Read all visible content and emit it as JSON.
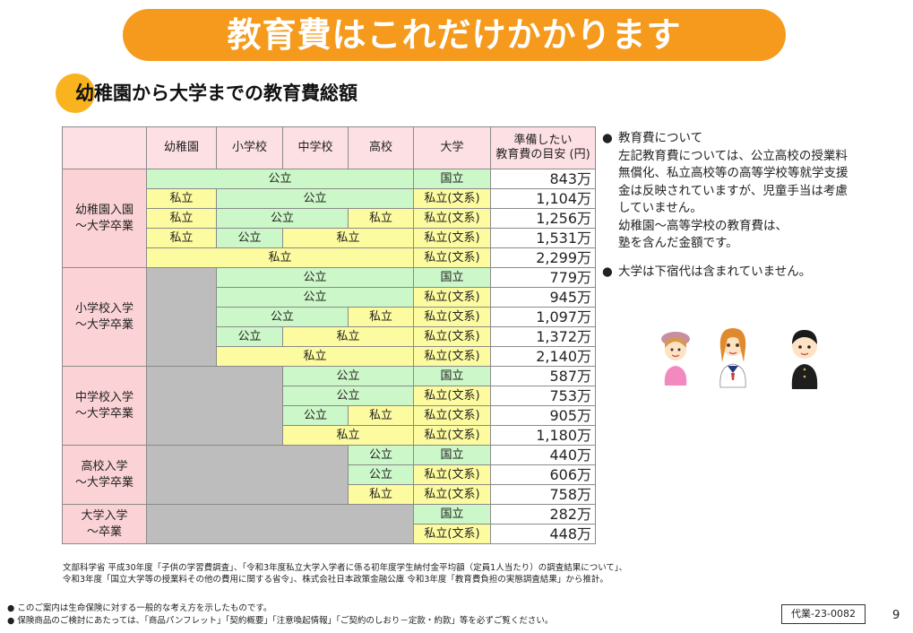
{
  "banner": "教育費はこれだけかかります",
  "subheading": "幼稚園から大学までの教育費総額",
  "table": {
    "headers": [
      "幼稚園",
      "小学校",
      "中学校",
      "高校",
      "大学"
    ],
    "amount_header": [
      "準備したい",
      "教育費の目安 (円)"
    ],
    "groups": [
      {
        "label": [
          "幼稚園入園",
          "～大学卒業"
        ],
        "rows": [
          {
            "cells": [
              {
                "t": "公立",
                "span": 4,
                "c": "g"
              }
            ],
            "univ": "国立",
            "univ_c": "g",
            "amount": "843万"
          },
          {
            "cells": [
              {
                "t": "私立",
                "span": 1,
                "c": "y"
              },
              {
                "t": "公立",
                "span": 3,
                "c": "g"
              }
            ],
            "univ": "私立(文系)",
            "univ_c": "y",
            "amount": "1,104万"
          },
          {
            "cells": [
              {
                "t": "私立",
                "span": 1,
                "c": "y"
              },
              {
                "t": "公立",
                "span": 2,
                "c": "g"
              },
              {
                "t": "私立",
                "span": 1,
                "c": "y"
              }
            ],
            "univ": "私立(文系)",
            "univ_c": "y",
            "amount": "1,256万"
          },
          {
            "cells": [
              {
                "t": "私立",
                "span": 1,
                "c": "y"
              },
              {
                "t": "公立",
                "span": 1,
                "c": "g"
              },
              {
                "t": "私立",
                "span": 2,
                "c": "y"
              }
            ],
            "univ": "私立(文系)",
            "univ_c": "y",
            "amount": "1,531万"
          },
          {
            "cells": [
              {
                "t": "私立",
                "span": 4,
                "c": "y"
              }
            ],
            "univ": "私立(文系)",
            "univ_c": "y",
            "amount": "2,299万"
          }
        ]
      },
      {
        "label": [
          "小学校入学",
          "～大学卒業"
        ],
        "gray": 1,
        "rows": [
          {
            "cells": [
              {
                "t": "公立",
                "span": 3,
                "c": "g"
              }
            ],
            "univ": "国立",
            "univ_c": "g",
            "amount": "779万"
          },
          {
            "cells": [
              {
                "t": "公立",
                "span": 3,
                "c": "g"
              }
            ],
            "univ": "私立(文系)",
            "univ_c": "y",
            "amount": "945万"
          },
          {
            "cells": [
              {
                "t": "公立",
                "span": 2,
                "c": "g"
              },
              {
                "t": "私立",
                "span": 1,
                "c": "y"
              }
            ],
            "univ": "私立(文系)",
            "univ_c": "y",
            "amount": "1,097万"
          },
          {
            "cells": [
              {
                "t": "公立",
                "span": 1,
                "c": "g"
              },
              {
                "t": "私立",
                "span": 2,
                "c": "y"
              }
            ],
            "univ": "私立(文系)",
            "univ_c": "y",
            "amount": "1,372万"
          },
          {
            "cells": [
              {
                "t": "私立",
                "span": 3,
                "c": "y"
              }
            ],
            "univ": "私立(文系)",
            "univ_c": "y",
            "amount": "2,140万"
          }
        ]
      },
      {
        "label": [
          "中学校入学",
          "～大学卒業"
        ],
        "gray": 2,
        "rows": [
          {
            "cells": [
              {
                "t": "公立",
                "span": 2,
                "c": "g"
              }
            ],
            "univ": "国立",
            "univ_c": "g",
            "amount": "587万"
          },
          {
            "cells": [
              {
                "t": "公立",
                "span": 2,
                "c": "g"
              }
            ],
            "univ": "私立(文系)",
            "univ_c": "y",
            "amount": "753万"
          },
          {
            "cells": [
              {
                "t": "公立",
                "span": 1,
                "c": "g"
              },
              {
                "t": "私立",
                "span": 1,
                "c": "y"
              }
            ],
            "univ": "私立(文系)",
            "univ_c": "y",
            "amount": "905万"
          },
          {
            "cells": [
              {
                "t": "私立",
                "span": 2,
                "c": "y"
              }
            ],
            "univ": "私立(文系)",
            "univ_c": "y",
            "amount": "1,180万"
          }
        ]
      },
      {
        "label": [
          "高校入学",
          "～大学卒業"
        ],
        "gray": 3,
        "rows": [
          {
            "cells": [
              {
                "t": "公立",
                "span": 1,
                "c": "g"
              }
            ],
            "univ": "国立",
            "univ_c": "g",
            "amount": "440万"
          },
          {
            "cells": [
              {
                "t": "公立",
                "span": 1,
                "c": "g"
              }
            ],
            "univ": "私立(文系)",
            "univ_c": "y",
            "amount": "606万"
          },
          {
            "cells": [
              {
                "t": "私立",
                "span": 1,
                "c": "y"
              }
            ],
            "univ": "私立(文系)",
            "univ_c": "y",
            "amount": "758万"
          }
        ]
      },
      {
        "label": [
          "大学入学",
          "～卒業"
        ],
        "gray": 4,
        "rows": [
          {
            "cells": [],
            "univ": "国立",
            "univ_c": "g",
            "amount": "282万"
          },
          {
            "cells": [],
            "univ": "私立(文系)",
            "univ_c": "y",
            "amount": "448万"
          }
        ]
      }
    ]
  },
  "notes": {
    "bullet": "●",
    "note1": [
      "教育費について",
      "左記教育費については、公立高校の授業料",
      "無償化、私立高校等の高等学校等就学支援",
      "金は反映されていますが、児童手当は考慮",
      "していません。",
      "幼稚園～高等学校の教育費は、",
      "塾を含んだ金額です。"
    ],
    "note2": "大学は下宿代は含まれていません。"
  },
  "source": [
    "文部科学省 平成30年度「子供の学習費調査」、「令和3年度私立大学入学者に係る初年度学生納付金平均額（定員1人当たり）の調査結果について」、",
    "令和3年度「国立大学等の授業料その他の費用に関する省令」、株式会社日本政策金融公庫 令和3年度「教育費負担の実態調査結果」から推計。"
  ],
  "footer": {
    "bullet": "●",
    "line1": "このご案内は生命保険に対する一般的な考え方を示したものです。",
    "line2": "保険商品のご検討にあたっては、「商品パンフレット」「契約概要」「注意喚起情報」「ご契約のしおり－定款・約款」等を必ずご覧ください。"
  },
  "doc_code": "代業-23-0082",
  "page_number": "9",
  "colors": {
    "orange": "#f59a1c",
    "pink": "#fbd3d6",
    "green": "#ccf7c8",
    "yellow": "#fdfb9f",
    "gray": "#bdbdbd"
  }
}
